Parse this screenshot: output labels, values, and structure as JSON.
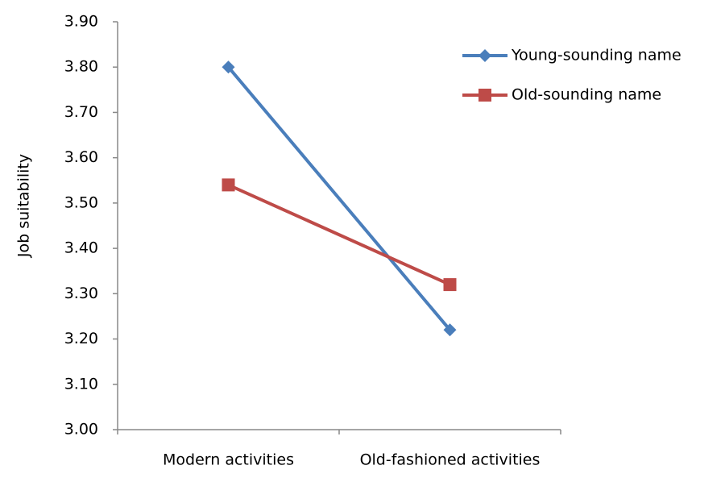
{
  "chart_data": {
    "type": "line",
    "y_label": "Job suitability",
    "categories": [
      "Modern activities",
      "Old-fashioned activities"
    ],
    "series": [
      {
        "name": "Young-sounding name",
        "color": "#4a7ebb",
        "marker": "diamond",
        "values": [
          3.8,
          3.22
        ]
      },
      {
        "name": "Old-sounding name",
        "color": "#be4b48",
        "marker": "square",
        "values": [
          3.54,
          3.32
        ]
      }
    ],
    "ylim": [
      3,
      3.9
    ],
    "yticks": [
      {
        "value": 3,
        "label": "3.00"
      },
      {
        "value": 3.1,
        "label": "3.10"
      },
      {
        "value": 3.2,
        "label": "3.20"
      },
      {
        "value": 3.3,
        "label": "3.30"
      },
      {
        "value": 3.4,
        "label": "3.40"
      },
      {
        "value": 3.5,
        "label": "3.50"
      },
      {
        "value": 3.6,
        "label": "3.60"
      },
      {
        "value": 3.7,
        "label": "3.70"
      },
      {
        "value": 3.8,
        "label": "3.80"
      },
      {
        "value": 3.9,
        "label": "3.90"
      }
    ],
    "grid": false,
    "legend": "right"
  }
}
